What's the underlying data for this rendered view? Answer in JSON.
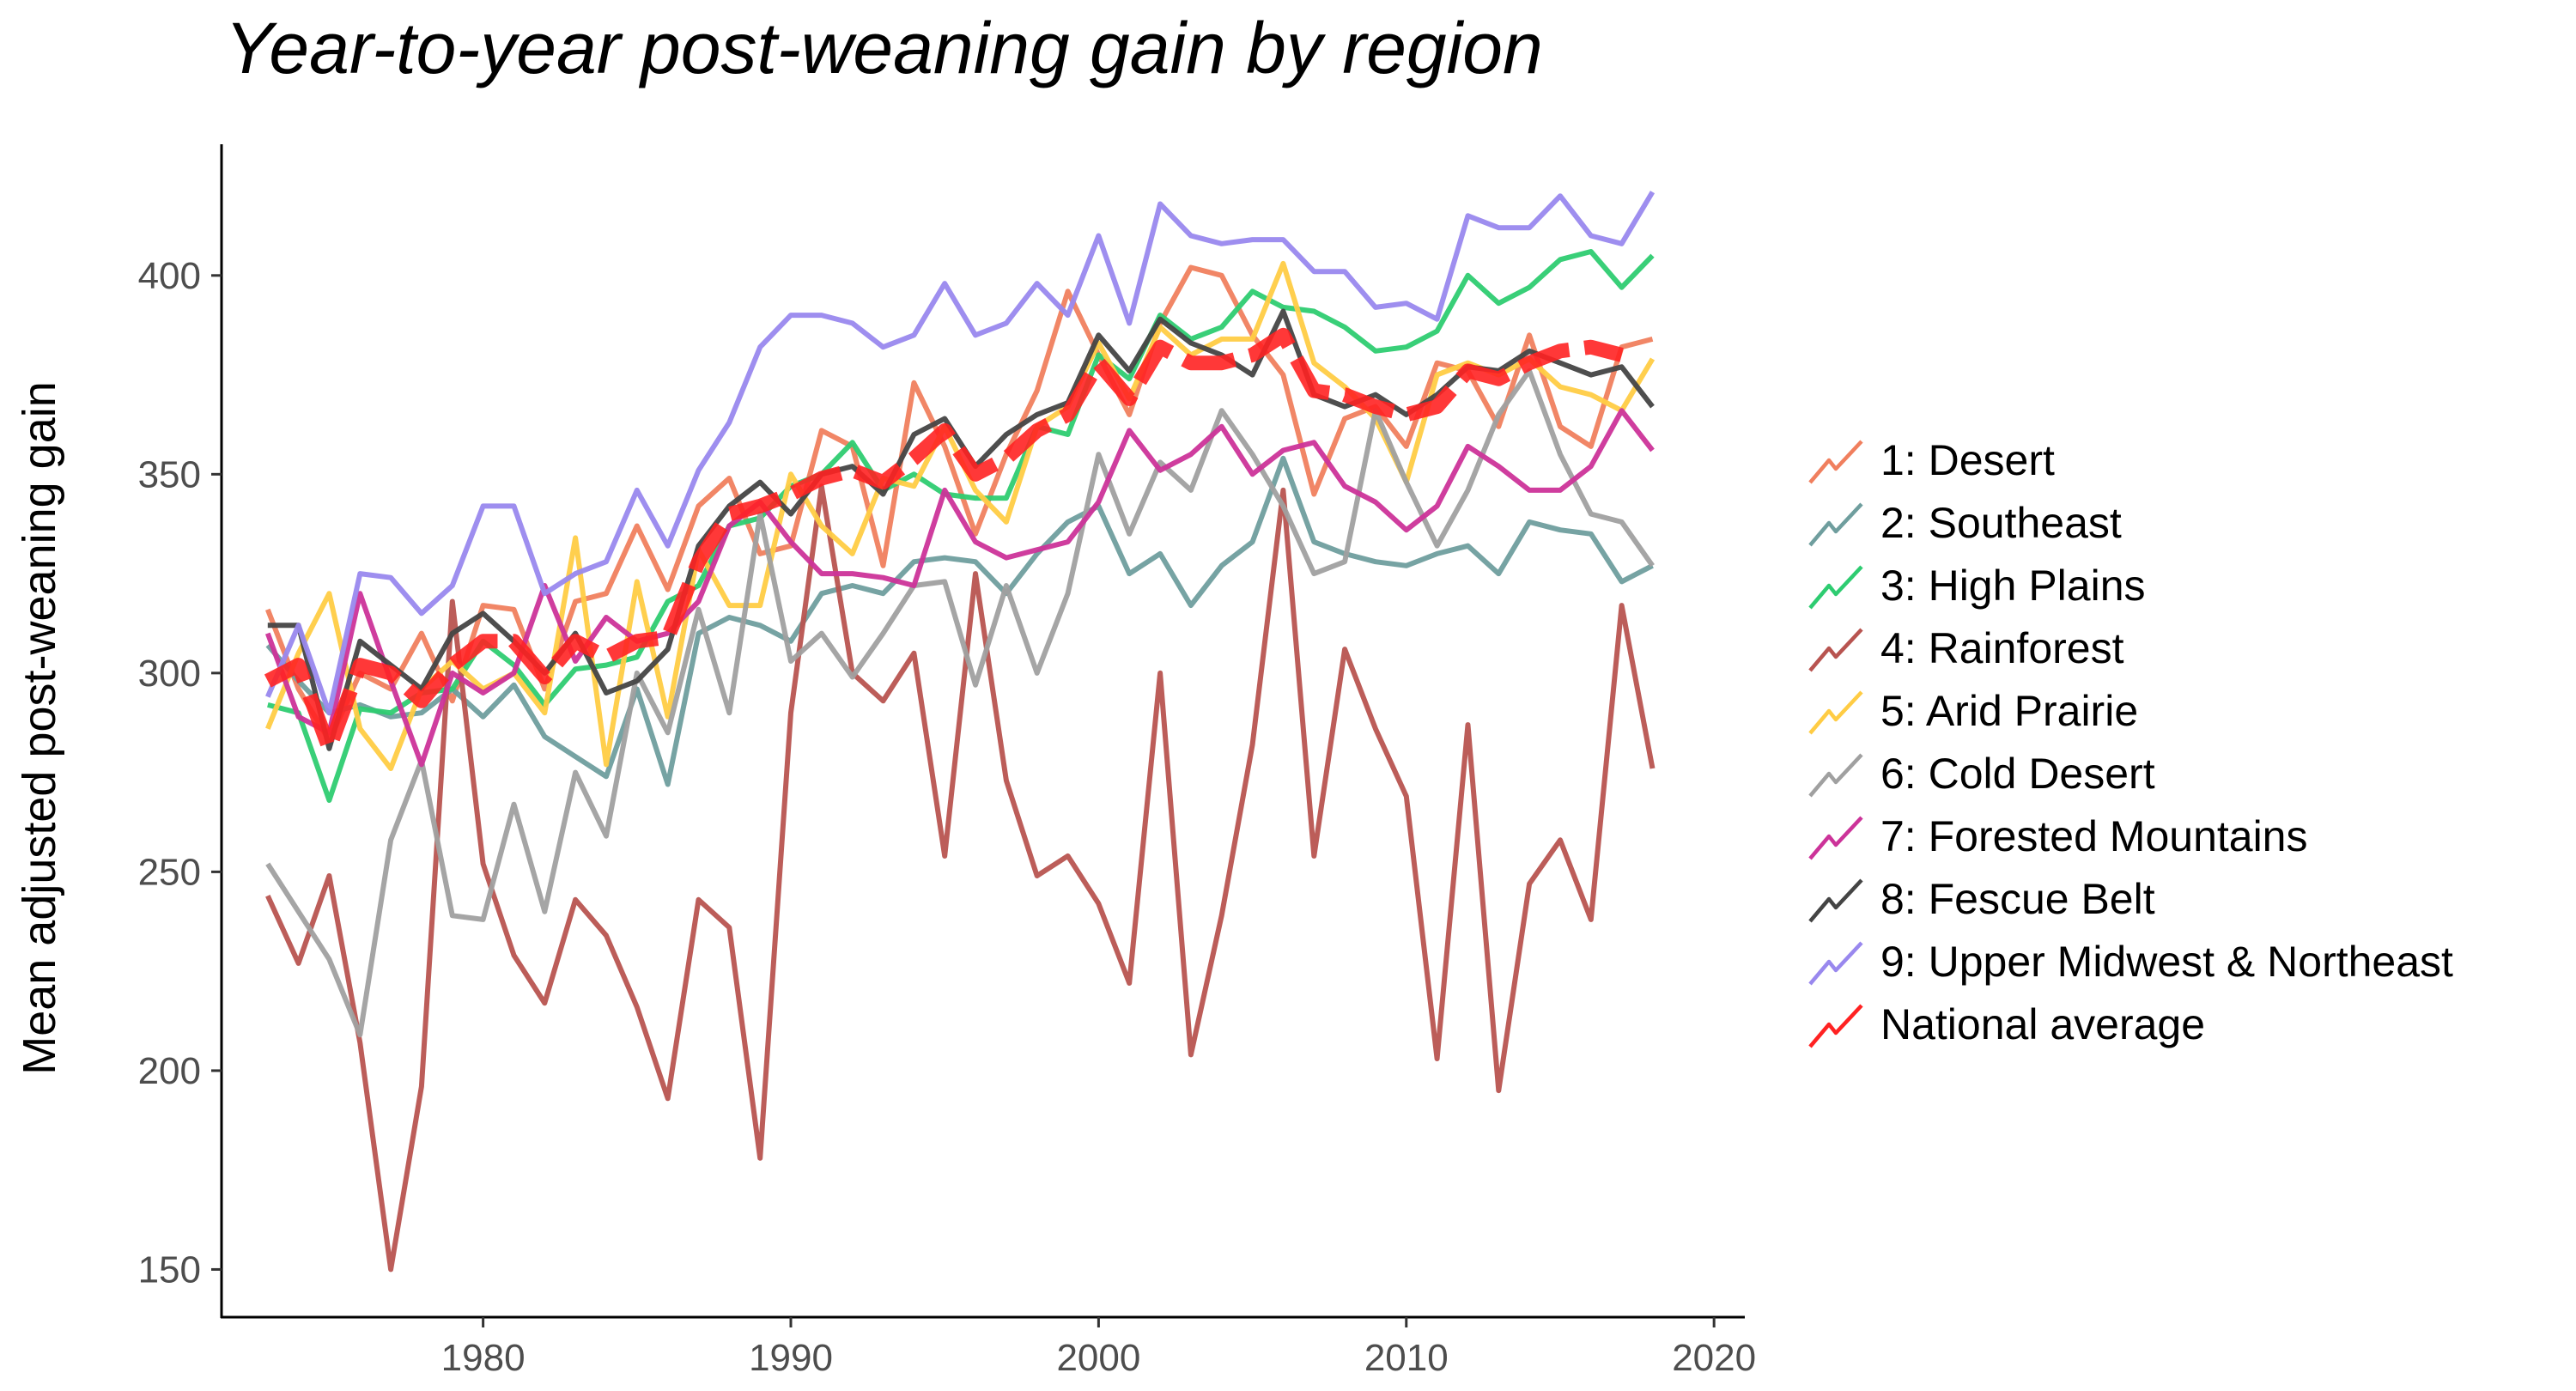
{
  "chart_data": {
    "type": "line",
    "title": "Year-to-year post-weaning gain by region",
    "xlabel": "",
    "ylabel": "Mean adjusted post-weaning gain",
    "xlim": [
      1971.5,
      2021
    ],
    "ylim": [
      138,
      433
    ],
    "x_ticks": [
      1980,
      1990,
      2000,
      2010,
      2020
    ],
    "y_ticks": [
      150,
      200,
      250,
      300,
      350,
      400
    ],
    "grid": false,
    "legend_position": "right",
    "x": [
      1973,
      1974,
      1975,
      1976,
      1977,
      1978,
      1979,
      1980,
      1981,
      1982,
      1983,
      1984,
      1985,
      1986,
      1987,
      1988,
      1989,
      1990,
      1991,
      1992,
      1993,
      1994,
      1995,
      1996,
      1997,
      1998,
      1999,
      2000,
      2001,
      2002,
      2003,
      2004,
      2005,
      2006,
      2007,
      2008,
      2009,
      2010,
      2011,
      2012,
      2013,
      2014,
      2015,
      2016,
      2017,
      2018
    ],
    "series": [
      {
        "name": "1: Desert",
        "color": "#F07F5E",
        "values": [
          316,
          296,
          283,
          300,
          296,
          310,
          293,
          317,
          316,
          296,
          318,
          320,
          337,
          321,
          342,
          349,
          330,
          332,
          361,
          357,
          327,
          373,
          357,
          335,
          355,
          371,
          396,
          380,
          365,
          388,
          402,
          400,
          385,
          375,
          345,
          364,
          367,
          357,
          378,
          376,
          362,
          385,
          362,
          357,
          382,
          384
        ]
      },
      {
        "name": "2: Southeast",
        "color": "#6F9E9E",
        "values": [
          307,
          298,
          290,
          292,
          289,
          290,
          296,
          289,
          297,
          284,
          279,
          274,
          296,
          272,
          310,
          314,
          312,
          308,
          320,
          322,
          320,
          328,
          329,
          328,
          320,
          330,
          338,
          342,
          325,
          330,
          317,
          327,
          333,
          354,
          333,
          330,
          328,
          327,
          330,
          332,
          325,
          338,
          336,
          335,
          323,
          327
        ]
      },
      {
        "name": "3: High Plains",
        "color": "#2ECC71",
        "values": [
          292,
          290,
          268,
          291,
          290,
          295,
          296,
          308,
          302,
          292,
          301,
          302,
          304,
          318,
          322,
          337,
          339,
          347,
          350,
          358,
          346,
          350,
          345,
          344,
          344,
          362,
          360,
          380,
          374,
          390,
          384,
          387,
          396,
          392,
          391,
          387,
          381,
          382,
          386,
          400,
          393,
          397,
          404,
          406,
          397,
          405
        ]
      },
      {
        "name": "4: Rainforest",
        "color": "#B85450",
        "values": [
          244,
          227,
          249,
          207,
          150,
          196,
          318,
          252,
          229,
          217,
          243,
          234,
          216,
          193,
          243,
          236,
          178,
          290,
          347,
          300,
          293,
          305,
          254,
          325,
          273,
          249,
          254,
          242,
          222,
          300,
          204,
          239,
          282,
          346,
          254,
          306,
          286,
          269,
          203,
          287,
          195,
          247,
          258,
          238,
          317,
          276
        ]
      },
      {
        "name": "5: Arid Prairie",
        "color": "#FFCC44",
        "values": [
          286,
          305,
          320,
          286,
          276,
          296,
          303,
          296,
          300,
          290,
          334,
          277,
          323,
          289,
          331,
          317,
          317,
          350,
          337,
          330,
          349,
          347,
          362,
          346,
          338,
          362,
          367,
          383,
          369,
          387,
          380,
          384,
          384,
          403,
          378,
          372,
          364,
          348,
          375,
          378,
          375,
          379,
          372,
          370,
          366,
          379
        ]
      },
      {
        "name": "6: Cold Desert",
        "color": "#A0A0A0",
        "values": [
          252,
          240,
          228,
          209,
          258,
          278,
          239,
          238,
          267,
          240,
          275,
          259,
          300,
          285,
          316,
          290,
          340,
          303,
          310,
          299,
          310,
          322,
          323,
          297,
          322,
          300,
          320,
          355,
          335,
          353,
          346,
          366,
          355,
          342,
          325,
          328,
          366,
          348,
          332,
          346,
          365,
          376,
          355,
          340,
          338,
          327
        ]
      },
      {
        "name": "7: Forested Mountains",
        "color": "#CC3399",
        "values": [
          310,
          289,
          285,
          320,
          298,
          277,
          300,
          295,
          300,
          322,
          303,
          314,
          308,
          310,
          318,
          337,
          343,
          333,
          325,
          325,
          324,
          322,
          346,
          333,
          329,
          331,
          333,
          343,
          361,
          351,
          355,
          362,
          350,
          356,
          358,
          347,
          343,
          336,
          342,
          357,
          352,
          346,
          346,
          352,
          366,
          356
        ]
      },
      {
        "name": "8: Fescue Belt",
        "color": "#444444",
        "values": [
          312,
          312,
          281,
          308,
          302,
          296,
          310,
          315,
          308,
          300,
          310,
          295,
          298,
          306,
          332,
          342,
          348,
          340,
          350,
          352,
          345,
          360,
          364,
          352,
          360,
          365,
          368,
          385,
          376,
          389,
          383,
          380,
          375,
          391,
          370,
          367,
          370,
          365,
          370,
          377,
          376,
          381,
          378,
          375,
          377,
          367
        ]
      },
      {
        "name": "9: Upper Midwest & Northeast",
        "color": "#9988EE",
        "values": [
          294,
          312,
          290,
          325,
          324,
          315,
          322,
          342,
          342,
          320,
          325,
          328,
          346,
          332,
          351,
          363,
          382,
          390,
          390,
          388,
          382,
          385,
          398,
          385,
          388,
          398,
          390,
          410,
          388,
          418,
          410,
          408,
          409,
          409,
          401,
          401,
          392,
          393,
          389,
          415,
          412,
          412,
          420,
          410,
          408,
          421
        ]
      },
      {
        "name": "National average",
        "color": "#FF2222",
        "values": [
          298,
          302,
          281,
          302,
          300,
          293,
          302,
          308,
          308,
          299,
          308,
          304,
          308,
          309,
          328,
          340,
          342,
          345,
          349,
          351,
          348,
          354,
          361,
          350,
          354,
          361,
          365,
          378,
          369,
          382,
          378,
          378,
          380,
          385,
          371,
          370,
          367,
          365,
          367,
          376,
          374,
          378,
          381,
          382,
          380,
          null
        ]
      }
    ]
  }
}
